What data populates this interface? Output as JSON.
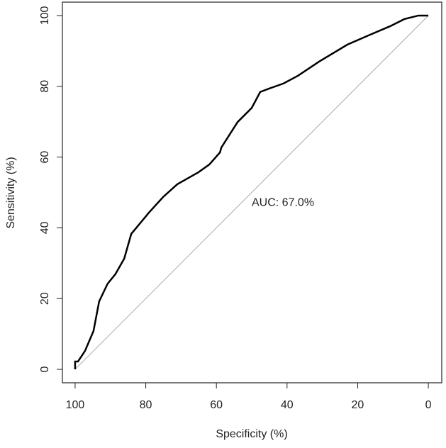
{
  "chart_data": {
    "type": "line",
    "x_label": "Specificity (%)",
    "y_label": "Sensitivity (%)",
    "annotation": {
      "text": "AUC: 67.0%",
      "x": 50,
      "y": 47
    },
    "x": [
      100,
      100,
      99.2,
      97.2,
      94.8,
      93.2,
      90.8,
      88.6,
      86.1,
      84.1,
      82.1,
      79.1,
      75.1,
      71.1,
      65.1,
      62.0,
      59.0,
      58.6,
      54.0,
      50.0,
      47.6,
      45.0,
      41.0,
      36.9,
      30.9,
      22.9,
      16.9,
      10.8,
      6.8,
      2.8,
      0
    ],
    "series": [
      {
        "color": "#000000",
        "values": [
          0,
          2.2,
          2.2,
          5.2,
          10.8,
          19.2,
          24.2,
          26.9,
          31.3,
          38.3,
          40.7,
          44.3,
          48.7,
          52.3,
          55.7,
          57.9,
          61.3,
          62.7,
          69.9,
          73.9,
          78.4,
          79.4,
          80.8,
          83.0,
          87.0,
          91.8,
          94.4,
          97.0,
          99.0,
          100,
          100
        ]
      }
    ],
    "reference": {
      "x": [
        100,
        0
      ],
      "values": [
        0,
        100
      ],
      "color": "#aaaaaa"
    },
    "xlim": [
      103.6,
      -3.8
    ],
    "ylim": [
      -3.8,
      103.8
    ],
    "xticks": [
      100,
      80,
      60,
      40,
      20,
      0
    ],
    "yticks": [
      0,
      20,
      40,
      60,
      80,
      100
    ]
  }
}
